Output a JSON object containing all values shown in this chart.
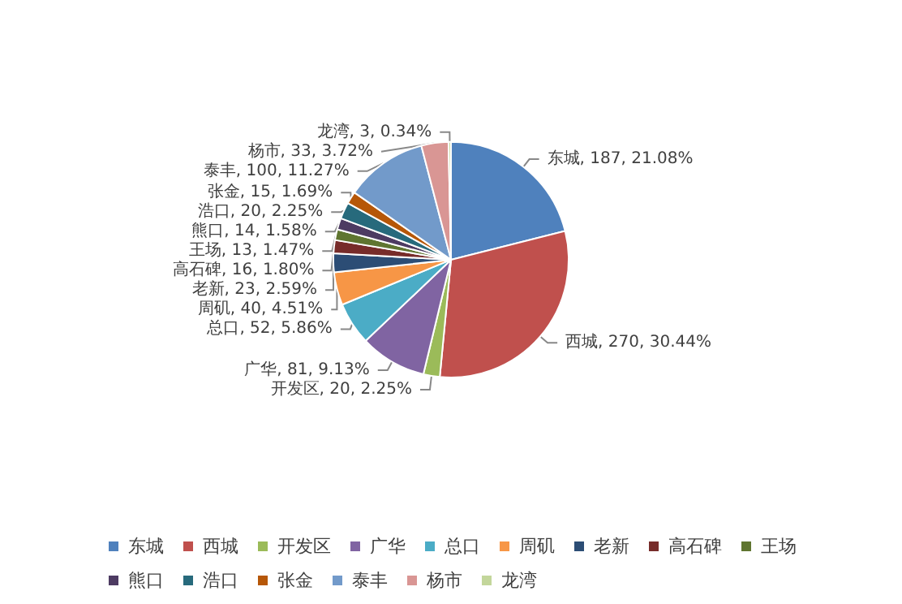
{
  "chart_data": {
    "type": "pie",
    "categories": [
      "东城",
      "西城",
      "开发区",
      "广华",
      "总口",
      "周矶",
      "老新",
      "高石碑",
      "王场",
      "熊口",
      "浩口",
      "张金",
      "泰丰",
      "杨市",
      "龙湾"
    ],
    "values": [
      187,
      270,
      20,
      81,
      52,
      40,
      23,
      16,
      13,
      14,
      20,
      15,
      100,
      33,
      3
    ],
    "colors": [
      "#4f81bd",
      "#c0504d",
      "#9bbb59",
      "#8064a2",
      "#4bacc6",
      "#f79646",
      "#2c4d75",
      "#772c2a",
      "#5f7530",
      "#4d3b62",
      "#276a7c",
      "#b65708",
      "#729aca",
      "#d99694",
      "#c3d69b"
    ],
    "value_labels": [
      "东城, 187, 21.08%",
      "西城, 270, 30.44%",
      "开发区, 20, 2.25%",
      "广华, 81, 9.13%",
      "总口, 52, 5.86%",
      "周矶, 40, 4.51%",
      "老新, 23, 2.59%",
      "高石碑, 16, 1.80%",
      "王场, 13, 1.47%",
      "熊口, 14, 1.58%",
      "浩口, 20, 2.25%",
      "张金, 15, 1.69%",
      "泰丰, 100, 11.27%",
      "杨市, 33, 3.72%",
      "龙湾, 3, 0.34%"
    ],
    "legend": "bottom"
  }
}
